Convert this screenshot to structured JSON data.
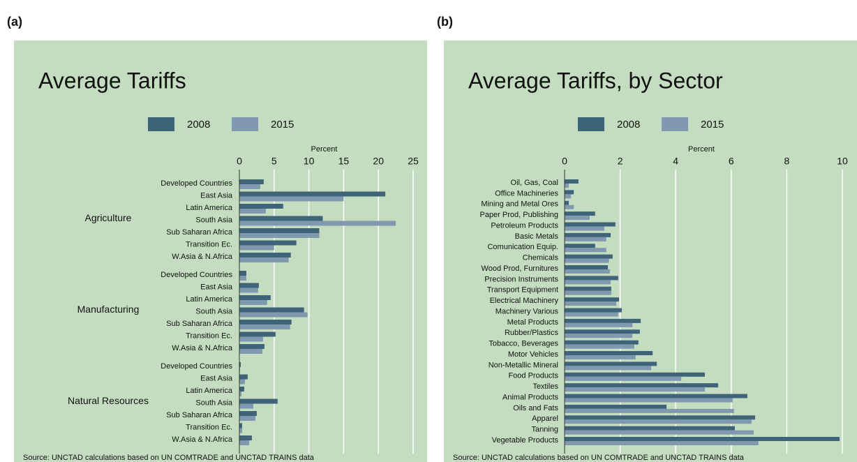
{
  "chart_data": [
    {
      "type": "bar",
      "orientation": "horizontal",
      "label": "(a)",
      "title": "Average Tariffs",
      "xlabel": "Percent",
      "xlim": [
        0,
        25
      ],
      "xticks": [
        0,
        5,
        10,
        15,
        20,
        25
      ],
      "grid": true,
      "groups": [
        {
          "name": "Agriculture",
          "categories": [
            "Developed Countries",
            "East Asia",
            "Latin America",
            "South Asia",
            "Sub Saharan Africa",
            "Transition Ec.",
            "W.Asia & N.Africa"
          ]
        },
        {
          "name": "Manufacturing",
          "categories": [
            "Developed Countries",
            "East Asia",
            "Latin America",
            "South Asia",
            "Sub Saharan Africa",
            "Transition Ec.",
            "W.Asia & N.Africa"
          ]
        },
        {
          "name": "Natural Resources",
          "categories": [
            "Developed Countries",
            "East Asia",
            "Latin America",
            "South Asia",
            "Sub Saharan Africa",
            "Transition Ec.",
            "W.Asia & N.Africa"
          ]
        }
      ],
      "series": [
        {
          "name": "2008",
          "color": "#3f6479",
          "values": [
            [
              3.5,
              21.0,
              6.3,
              12.0,
              11.5,
              8.2,
              7.4
            ],
            [
              1.0,
              2.8,
              4.5,
              9.3,
              7.5,
              5.2,
              3.6
            ],
            [
              0.2,
              1.2,
              0.7,
              5.5,
              2.5,
              0.4,
              1.8
            ]
          ]
        },
        {
          "name": "2015",
          "color": "#8099af",
          "values": [
            [
              3.0,
              15.0,
              3.8,
              22.5,
              11.5,
              5.0,
              7.1
            ],
            [
              1.0,
              2.7,
              4.0,
              9.8,
              7.3,
              3.4,
              3.3
            ],
            [
              0.1,
              0.8,
              0.3,
              2.0,
              2.3,
              0.4,
              1.4
            ]
          ]
        }
      ],
      "source": "Source: UNCTAD calculations based on UN COMTRADE and UNCTAD TRAINS data"
    },
    {
      "type": "bar",
      "orientation": "horizontal",
      "label": "(b)",
      "title": "Average Tariffs, by Sector",
      "xlabel": "Percent",
      "xlim": [
        0,
        10
      ],
      "xticks": [
        0,
        2,
        4,
        6,
        8,
        10
      ],
      "grid": true,
      "categories": [
        "Oil, Gas, Coal",
        "Office Machineries",
        "Mining and Metal Ores",
        "Paper Prod, Publishing",
        "Petroleum Products",
        "Basic Metals",
        "Comunication Equip.",
        "Chemicals",
        "Wood Prod, Furnitures",
        "Precision Instruments",
        "Transport Equipment",
        "Electrical Machinery",
        "Machinery Various",
        "Metal Products",
        "Rubber/Plastics",
        "Tobacco, Beverages",
        "Motor Vehicles",
        "Non-Metallic Mineral",
        "Food Products",
        "Textiles",
        "Animal Products",
        "Oils and Fats",
        "Apparel",
        "Tanning",
        "Vegetable Products"
      ],
      "series": [
        {
          "name": "2008",
          "color": "#3f6479",
          "values": [
            0.5,
            0.33,
            0.15,
            1.1,
            1.83,
            1.66,
            1.1,
            1.73,
            1.56,
            1.93,
            1.68,
            1.96,
            2.06,
            2.74,
            2.71,
            2.66,
            3.17,
            3.32,
            5.05,
            5.53,
            6.58,
            3.67,
            6.86,
            6.13,
            9.9
          ]
        },
        {
          "name": "2015",
          "color": "#8099af",
          "values": [
            0.15,
            0.23,
            0.33,
            0.9,
            1.43,
            1.5,
            1.5,
            1.6,
            1.63,
            1.66,
            1.68,
            1.86,
            1.93,
            2.44,
            2.44,
            2.51,
            2.56,
            3.12,
            4.2,
            5.05,
            6.05,
            6.1,
            6.73,
            6.81,
            6.98
          ]
        }
      ],
      "source": "Source: UNCTAD calculations based on UN COMTRADE and UNCTAD TRAINS data"
    }
  ]
}
